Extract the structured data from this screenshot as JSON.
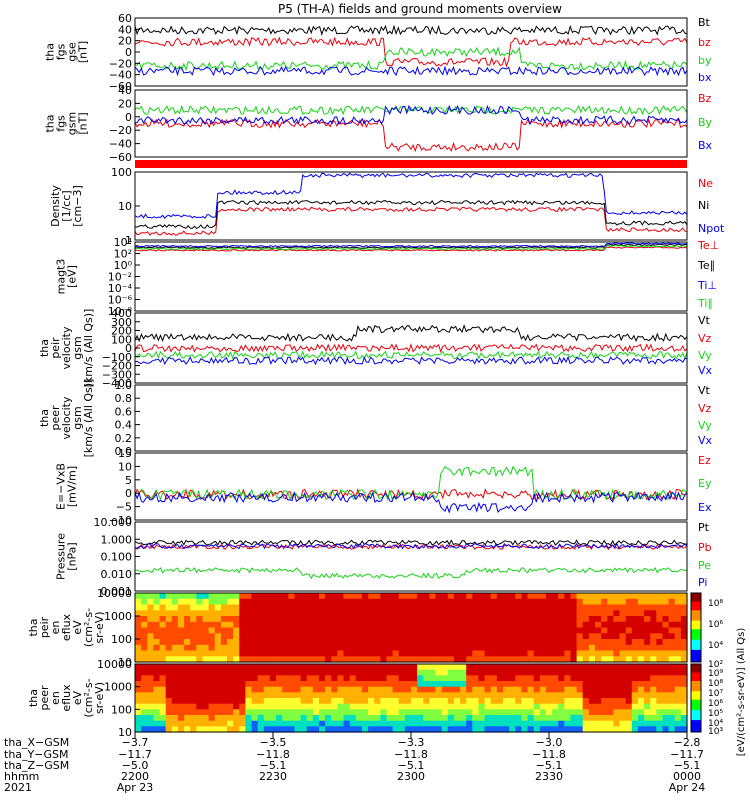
{
  "title": "P5 (TH-A) fields and ground moments overview",
  "colors": {
    "black": "#000000",
    "red": "#e8000b",
    "green": "#16d416",
    "blue": "#0000ee"
  },
  "chart_data": [
    {
      "type": "line",
      "panel": "fgs_gse",
      "ylabel_lines": [
        "tha",
        "fgs",
        "gse",
        "[nT]"
      ],
      "ylim": [
        -60,
        60
      ],
      "yticks": [
        "60",
        "40",
        "20",
        "0",
        "−20",
        "−40",
        "−60"
      ],
      "legend": [
        "Bt",
        "bz",
        "by",
        "bx"
      ],
      "series": [
        {
          "name": "Bt",
          "color": "black",
          "segments": [
            [
              "0",
              40
            ],
            [
              "0.2",
              45
            ],
            [
              "0.4",
              32
            ],
            [
              "0.5",
              40
            ],
            [
              "0.7",
              43
            ],
            [
              "1",
              38
            ]
          ]
        },
        {
          "name": "bz",
          "color": "red",
          "segments": [
            [
              "0",
              20
            ],
            [
              "0.3",
              15
            ],
            [
              "0.45",
              -10
            ],
            [
              "0.55",
              -30
            ],
            [
              "0.7",
              0
            ],
            [
              "0.85",
              20
            ],
            [
              "1",
              18
            ]
          ]
        },
        {
          "name": "by",
          "color": "green",
          "segments": [
            [
              "0",
              -10
            ],
            [
              "0.3",
              -20
            ],
            [
              "0.5",
              20
            ],
            [
              "0.7",
              10
            ],
            [
              "0.85",
              -10
            ],
            [
              "1",
              -15
            ]
          ]
        },
        {
          "name": "bx",
          "color": "blue",
          "segments": [
            [
              "0",
              -20
            ],
            [
              "0.3",
              -15
            ],
            [
              "0.5",
              -15
            ],
            [
              "0.7",
              -10
            ],
            [
              "0.85",
              -20
            ],
            [
              "1",
              -25
            ]
          ]
        }
      ]
    },
    {
      "type": "line",
      "panel": "fgs_gsm",
      "ylabel_lines": [
        "tha",
        "fgs",
        "gsm",
        "[nT]"
      ],
      "ylim": [
        -60,
        40
      ],
      "yticks": [
        "40",
        "20",
        "0",
        "−20",
        "−40",
        "−60"
      ],
      "legend": [
        "Bz",
        "By",
        "Bx"
      ]
    },
    {
      "type": "line",
      "panel": "density",
      "ylabel_lines": [
        "Density",
        "[1/cc]",
        "[cm−3]"
      ],
      "ylog": true,
      "yticks": [
        "100",
        "10",
        "1"
      ],
      "legend": [
        "Ne",
        "Ni",
        "Npot"
      ]
    },
    {
      "type": "line",
      "panel": "temperature",
      "ylabel_lines": [
        "magt3",
        "[eV]"
      ],
      "ylog": true,
      "yticks": [
        "10⁴",
        "10²",
        "10⁰",
        "10⁻²",
        "10⁻⁴",
        "10⁻⁶",
        "10⁻⁸"
      ],
      "legend": [
        "Te⊥",
        "Te∥",
        "Ti⊥",
        "Ti∥"
      ]
    },
    {
      "type": "line",
      "panel": "peir_velocity",
      "ylabel_lines": [
        "tha",
        "peir",
        "velocity",
        "gsm",
        "[km/s (All Qs)]"
      ],
      "ylim": [
        -400,
        400
      ],
      "yticks": [
        "400",
        "300",
        "200",
        "100",
        "0",
        "−100",
        "−200",
        "−300",
        "−400"
      ],
      "legend": [
        "Vt",
        "Vz",
        "Vy",
        "Vx"
      ]
    },
    {
      "type": "line",
      "panel": "peer_velocity",
      "ylabel_lines": [
        "tha",
        "peer",
        "velocity",
        "gsm",
        "[km/s (All Qs)]"
      ],
      "ylim": [
        0,
        1
      ],
      "yticks": [
        "1.0",
        "0.8",
        "0.6",
        "0.4",
        "0.2",
        "0.0"
      ],
      "legend": [
        "Vt",
        "Vz",
        "Vy",
        "Vx"
      ]
    },
    {
      "type": "line",
      "panel": "efield",
      "ylabel_lines": [
        "E=−VxB",
        "[mV/m]"
      ],
      "ylim": [
        -10,
        15
      ],
      "yticks": [
        "15",
        "10",
        "5",
        "0",
        "−5",
        "−10"
      ],
      "legend": [
        "Ez",
        "Ey",
        "Ex"
      ]
    },
    {
      "type": "line",
      "panel": "pressure",
      "ylabel_lines": [
        "Pressure",
        "[nPa]"
      ],
      "ylog": true,
      "yticks": [
        "10.000",
        "1.000",
        "0.100",
        "0.010",
        "0.001"
      ],
      "legend": [
        "Pt",
        "Pb",
        "Pe",
        "Pi"
      ]
    },
    {
      "type": "heatmap",
      "panel": "peir_eflux",
      "ylabel_lines": [
        "tha",
        "peir",
        "en",
        "eflux",
        "eV",
        "(cm²-s-",
        "sr-eV)"
      ],
      "yticks": [
        "10000",
        "1000",
        "100",
        "10"
      ]
    },
    {
      "type": "heatmap",
      "panel": "peer_eflux",
      "ylabel_lines": [
        "tha",
        "peer",
        "en",
        "eflux",
        "eV",
        "(cm²-s-",
        "sr-eV)"
      ],
      "yticks": [
        "10000",
        "1000",
        "100",
        "10"
      ]
    }
  ],
  "colorbar": {
    "label": "[eV/(cm²-s-sr-eV)] (All Qs)",
    "ticks": [
      "10⁸",
      "10⁶",
      "10⁴",
      "10²",
      "10⁹",
      "10⁸",
      "10⁷",
      "10⁶",
      "10⁵",
      "10⁴",
      "10³"
    ]
  },
  "xaxis": {
    "row_labels": [
      "tha_X−GSM",
      "tha_Y−GSM",
      "tha_Z−GSM",
      "hhmm",
      "2021"
    ],
    "columns": [
      {
        "x": "−3.7",
        "y": "−11.7",
        "z": "−5.0",
        "hhmm": "2200",
        "date": "Apr 23"
      },
      {
        "x": "−3.5",
        "y": "−11.8",
        "z": "−5.1",
        "hhmm": "2230",
        "date": ""
      },
      {
        "x": "−3.3",
        "y": "−11.8",
        "z": "−5.1",
        "hhmm": "2300",
        "date": ""
      },
      {
        "x": "−3.0",
        "y": "−11.8",
        "z": "−5.1",
        "hhmm": "2330",
        "date": ""
      },
      {
        "x": "−2.8",
        "y": "−11.7",
        "z": "−5.1",
        "hhmm": "0000",
        "date": "Apr 24"
      }
    ]
  }
}
